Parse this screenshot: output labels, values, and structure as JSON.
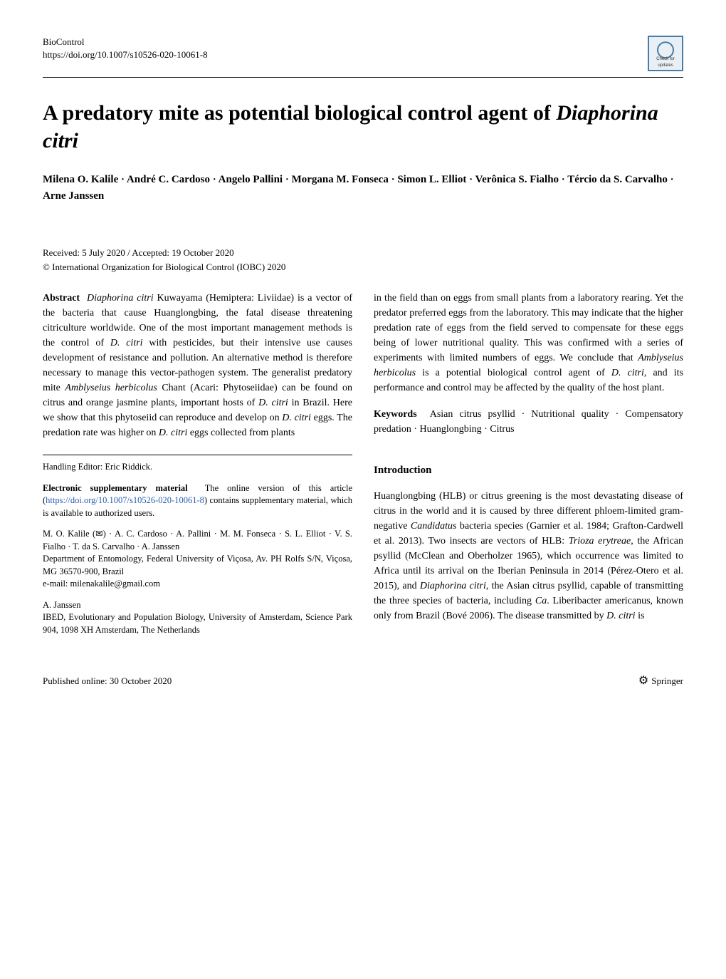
{
  "header": {
    "journal": "BioControl",
    "doi": "https://doi.org/10.1007/s10526-020-10061-8"
  },
  "title_pre": "A predatory mite as potential biological control agent of ",
  "title_italic": "Diaphorina citri",
  "authors": "Milena O. Kalile · André C. Cardoso · Angelo Pallini · Morgana M. Fonseca · Simon L. Elliot · Verônica S. Fialho · Tércio da S. Carvalho · Arne Janssen",
  "received": "Received: 5 July 2020 / Accepted: 19 October 2020",
  "copyright": "© International Organization for Biological Control (IOBC) 2020",
  "abstract": {
    "label": "Abstract",
    "left_html": "<span class='italic'>Diaphorina citri</span> Kuwayama (Hemiptera: Liviidae) is a vector of the bacteria that cause Huanglongbing, the fatal disease threatening citriculture worldwide. One of the most important management methods is the control of <span class='italic'>D. citri</span> with pesticides, but their intensive use causes development of resistance and pollution. An alternative method is therefore necessary to manage this vector-pathogen system. The generalist predatory mite <span class='italic'>Amblyseius herbicolus</span> Chant (Acari: Phytoseiidae) can be found on citrus and orange jasmine plants, important hosts of <span class='italic'>D. citri</span> in Brazil. Here we show that this phytoseiid can reproduce and develop on <span class='italic'>D. citri</span> eggs. The predation rate was higher on <span class='italic'>D. citri</span> eggs collected from plants",
    "right_html": "in the field than on eggs from small plants from a laboratory rearing. Yet the predator preferred eggs from the laboratory. This may indicate that the higher predation rate of eggs from the field served to compensate for these eggs being of lower nutritional quality. This was confirmed with a series of experiments with limited numbers of eggs. We conclude that <span class='italic'>Amblyseius herbicolus</span> is a potential biological control agent of <span class='italic'>D. citri</span>, and its performance and control may be affected by the quality of the host plant."
  },
  "keywords": {
    "label": "Keywords",
    "text": "Asian citrus psyllid · Nutritional quality · Compensatory predation · Huanglongbing · Citrus"
  },
  "intro": {
    "heading": "Introduction",
    "body_html": "Huanglongbing (HLB) or citrus greening is the most devastating disease of citrus in the world and it is caused by three different phloem-limited gram-negative <span class='italic'>Candidatus</span> bacteria species (Garnier et al. 1984; Grafton-Cardwell et al. 2013). Two insects are vectors of HLB: <span class='italic'>Trioza erytreae</span>, the African psyllid (McClean and Oberholzer 1965), which occurrence was limited to Africa until its arrival on the Iberian Peninsula in 2014 (Pérez-Otero et al. 2015), and <span class='italic'>Diaphorina citri</span>, the Asian citrus psyllid, capable of transmitting the three species of bacteria, including <span class='italic'>Ca</span>. Liberibacter americanus, known only from Brazil (Bové 2006). The disease transmitted by <span class='italic'>D. citri</span> is"
  },
  "handling_editor": "Handling Editor: Eric Riddick.",
  "esm": {
    "label": "Electronic supplementary material",
    "text_pre": "The online version of this article (",
    "link": "https://doi.org/10.1007/s10526-020-10061-8",
    "text_post": ") contains supplementary material, which is available to authorized users."
  },
  "affiliations": {
    "block1": "M. O. Kalile (✉) · A. C. Cardoso · A. Pallini · M. M. Fonseca · S. L. Elliot · V. S. Fialho · T. da S. Carvalho · A. Janssen",
    "block1_addr": "Department of Entomology, Federal University of Viçosa, Av. PH Rolfs S/N, Viçosa, MG 36570-900, Brazil",
    "block1_email": "e-mail: milenakalile@gmail.com",
    "block2": "A. Janssen",
    "block2_addr": "IBED, Evolutionary and Population Biology, University of Amsterdam, Science Park 904, 1098 XH Amsterdam, The Netherlands"
  },
  "footer": {
    "published": "Published online: 30 October 2020",
    "publisher": "Springer"
  }
}
